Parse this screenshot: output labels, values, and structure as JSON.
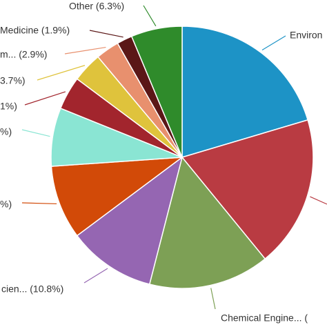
{
  "chart_data": {
    "type": "pie",
    "categories": [
      "Environ",
      null,
      "Chemical Engine... (",
      "cien... (10.8%)",
      "%)",
      "%)",
      "1%)",
      "3.7%)",
      "m... (2.9%)",
      "Medicine (1.9%)",
      "Other (6.3%)"
    ],
    "values": [
      20.4,
      18.7,
      14.9,
      10.8,
      9.1,
      7.2,
      4.1,
      3.7,
      2.9,
      1.9,
      6.3
    ],
    "colors": [
      "#1d93c6",
      "#b93b42",
      "#7da055",
      "#9566b2",
      "#d24a08",
      "#8ae5d3",
      "#a2252d",
      "#dfc33c",
      "#e8906e",
      "#5b1717",
      "#2f8b2b"
    ]
  }
}
